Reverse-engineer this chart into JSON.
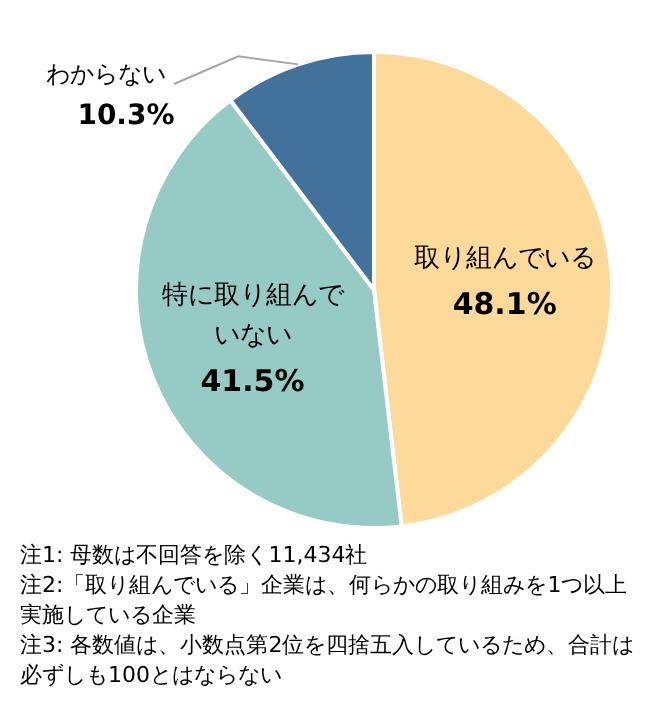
{
  "chart_data": {
    "type": "pie",
    "categories": [
      "取り組んでいる",
      "特に取り組んでいない",
      "わからない"
    ],
    "values": [
      48.1,
      41.5,
      10.3
    ],
    "colors": [
      "#fdd99a",
      "#96cac4",
      "#42729c"
    ],
    "value_labels": [
      "48.1%",
      "41.5%",
      "10.3%"
    ],
    "legend": false,
    "annotations": [
      "注1: 母数は不回答を除く11,434社",
      "注2:「取り組んでいる」企業は、何らかの取り組みを1つ以上実施している企業",
      "注3: 各数値は、小数点第2位を四捨五入しているため、合計は必ずしも100とはならない"
    ]
  }
}
